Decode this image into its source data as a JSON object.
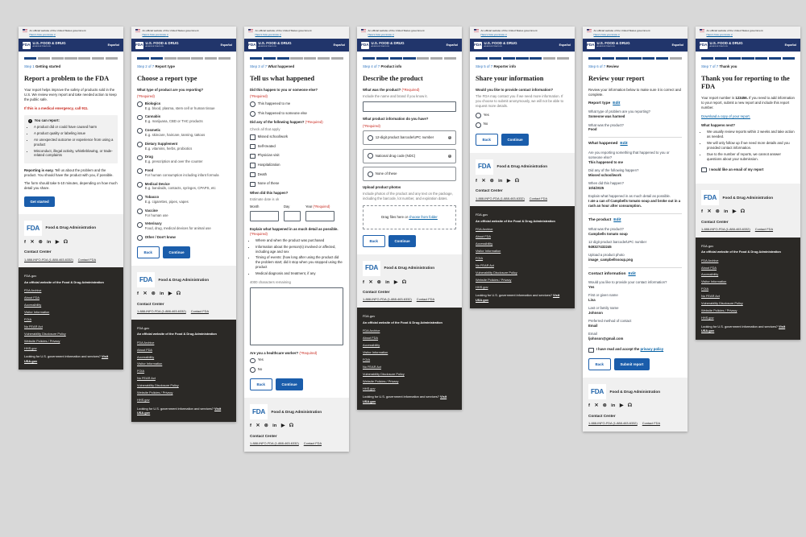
{
  "shared": {
    "banner": {
      "flag_icon": "us-flag-icon",
      "line1": "An official website of the United States government",
      "line2": "Here's how you know",
      "chevron": "∨"
    },
    "header": {
      "logo": "FDA",
      "title": "U.S. FOOD & DRUG",
      "subtitle": "ADMINISTRATION",
      "language": "Español"
    },
    "required": "(*Required)",
    "footer_gray": {
      "logo": "FDA",
      "org": "Food & Drug Administration",
      "social_icons": [
        "facebook",
        "x",
        "instagram",
        "linkedin",
        "youtube",
        "rss"
      ],
      "contact_center": "Contact Center",
      "phone": "1-888-INFO-FDA (1-888-463-6332)",
      "contact_link": "Contact FDA"
    },
    "footer_dark": {
      "site": "FDA.gov",
      "official": "An official website of the Food & Drug Administration",
      "links": [
        "FDA Archive",
        "About FDA",
        "Accessibility",
        "Visitor Information",
        "FOIA",
        "No FEAR Act",
        "Vulnerability Disclosure Policy",
        "Website Policies / Privacy",
        "HHS.gov"
      ],
      "usa_text": "Looking for U.S. government information and services? ",
      "usa_link": "Visit USA.gov"
    },
    "colors": {
      "navy": "#21356b",
      "progress_filled": "#1a4480",
      "progress_empty": "#acacac",
      "button_blue": "#1a5dab",
      "link_blue": "#005ea2",
      "required_red": "#c8281e",
      "dark_footer_bg": "#2b2926",
      "gray_footer_bg": "#f0f0f0"
    }
  },
  "panels": [
    {
      "step": 1,
      "step_label": "Step 1",
      "step_title": "Getting started",
      "dark_footer": true,
      "blocks": [
        {
          "type": "h1",
          "text": "Report a problem to the FDA"
        },
        {
          "type": "p",
          "runs": [
            {
              "t": "Your report helps improve the safety of products sold in the U.S. We review every report and take needed action to keep the public safe."
            }
          ]
        },
        {
          "type": "alert",
          "text": "If this is a medical emergency, call 911."
        },
        {
          "type": "infocard",
          "icon": "info-icon",
          "title": "You can report:",
          "bullets": [
            "A product did or could have caused harm",
            "A product quality or labeling issue",
            "An unexpected outcome or experience from using a product",
            "Misconduct, illegal activity, whistleblowing, or trade-related complaints"
          ]
        },
        {
          "type": "p",
          "runs": [
            {
              "t": "Reporting is easy.",
              "b": 1
            },
            {
              "t": " Tell us about the problem and the product. You should have the product with you, if possible."
            }
          ]
        },
        {
          "type": "p",
          "runs": [
            {
              "t": "The form should take 5-10 minutes, depending on how much detail you share."
            }
          ]
        },
        {
          "type": "buttons",
          "items": [
            {
              "label": "Get started",
              "style": "primary",
              "name": "get-started-button"
            }
          ]
        }
      ]
    },
    {
      "step": 2,
      "step_label": "Step 2 of 7",
      "step_title": "Report type",
      "dark_footer": true,
      "blocks": [
        {
          "type": "h1",
          "text": "Choose a report type"
        },
        {
          "type": "label",
          "runs": [
            {
              "t": "What type of product are you reporting?",
              "b": 1
            }
          ]
        },
        {
          "type": "label",
          "runs": [
            {
              "t": "(*Required)",
              "red": 1
            }
          ]
        },
        {
          "type": "radios",
          "options": [
            {
              "label": "Biologics",
              "b": 1,
              "desc": "E.g. blood, plasma, stem cell or human tissue"
            },
            {
              "label": "Cannabis",
              "b": 1,
              "desc": "E.g. marijuana, CBD or THC products"
            },
            {
              "label": "Cosmetic",
              "b": 1,
              "desc": "E.g. skincare, haircare, tanning, tattoos"
            },
            {
              "label": "Dietary Supplement",
              "b": 1,
              "desc": "E.g. vitamins, herbs, probiotics"
            },
            {
              "label": "Drug",
              "b": 1,
              "desc": "E.g. prescription and over the counter"
            },
            {
              "label": "Food",
              "b": 1,
              "desc": "For human consumption including infant formula"
            },
            {
              "label": "Medical Device",
              "b": 1,
              "desc": "E.g. bandaids, contacts, syringes, CPAPS, etc"
            },
            {
              "label": "Tobacco",
              "b": 1,
              "desc": "E.g. cigarettes, pipes, vapes"
            },
            {
              "label": "Vaccine",
              "b": 1,
              "desc": "For human use"
            },
            {
              "label": "Veterinary",
              "b": 1,
              "desc": "Food, drug, medical devices for animal use"
            },
            {
              "label": "Other / Don't know",
              "b": 1
            }
          ]
        },
        {
          "type": "buttons",
          "items": [
            {
              "label": "Back",
              "style": "outline",
              "name": "back-button"
            },
            {
              "label": "Continue",
              "style": "primary",
              "name": "continue-button"
            }
          ]
        }
      ]
    },
    {
      "step": 3,
      "step_label": "Step 3 of 7",
      "step_title": "What happened",
      "dark_footer": false,
      "blocks": [
        {
          "type": "h1",
          "text": "Tell us what happened"
        },
        {
          "type": "label",
          "runs": [
            {
              "t": "Did this happen to you or someone else?",
              "b": 1
            }
          ]
        },
        {
          "type": "label",
          "runs": [
            {
              "t": "(*Required)",
              "red": 1
            }
          ]
        },
        {
          "type": "radios",
          "options": [
            {
              "label": "This happened to me"
            },
            {
              "label": "This happened to someone else"
            }
          ]
        },
        {
          "type": "label",
          "runs": [
            {
              "t": "Did any of the following happen? ",
              "b": 1
            },
            {
              "t": "(*Required)",
              "red": 1
            }
          ]
        },
        {
          "type": "hint",
          "text": "Check all that apply"
        },
        {
          "type": "checks",
          "options": [
            {
              "label": "Missed school/work"
            },
            {
              "label": "Self-treated"
            },
            {
              "label": "Physician visit"
            },
            {
              "label": "Hospitalization"
            },
            {
              "label": "Death"
            },
            {
              "label": "None of these"
            }
          ]
        },
        {
          "type": "label",
          "runs": [
            {
              "t": "When did this happen?",
              "b": 1
            }
          ]
        },
        {
          "type": "hint",
          "text": "Estimate date is ok"
        },
        {
          "type": "dates",
          "fields": [
            {
              "label": "Month"
            },
            {
              "label": "Day"
            },
            {
              "label": "Year",
              "required": 1
            }
          ]
        },
        {
          "type": "label",
          "runs": [
            {
              "t": "Explain what happened in as much detail as possible. ",
              "b": 1
            },
            {
              "t": "(*Required)",
              "red": 1
            }
          ]
        },
        {
          "type": "bullets",
          "items": [
            "Where and when the product was purchased",
            "Information about the person(s) involved or affected, including age and sex",
            "Timing of events: (how long after using the product did the problem start; did it stop when you stopped using the product",
            "Medical diagnosis and treatment, if any"
          ]
        },
        {
          "type": "hint",
          "text": "4000 characters remaining"
        },
        {
          "type": "textarea"
        },
        {
          "type": "label",
          "runs": [
            {
              "t": "Are you a healthcare worker? ",
              "b": 1
            },
            {
              "t": "(*Required)",
              "red": 1
            }
          ]
        },
        {
          "type": "radios",
          "options": [
            {
              "label": "Yes"
            },
            {
              "label": "No"
            }
          ]
        },
        {
          "type": "buttons",
          "items": [
            {
              "label": "Back",
              "style": "outline",
              "name": "back-button"
            },
            {
              "label": "Continue",
              "style": "primary",
              "name": "continue-button"
            }
          ]
        }
      ]
    },
    {
      "step": 4,
      "step_label": "Step 4 of 7",
      "step_title": "Product info",
      "dark_footer": true,
      "blocks": [
        {
          "type": "h1",
          "text": "Describe the product"
        },
        {
          "type": "label",
          "runs": [
            {
              "t": "What was the product? ",
              "b": 1
            },
            {
              "t": "(*Required)",
              "red": 1
            }
          ]
        },
        {
          "type": "hint",
          "text": "Include the name and brand if you know it."
        },
        {
          "type": "input"
        },
        {
          "type": "label",
          "runs": [
            {
              "t": "What product information do you have?",
              "b": 1
            }
          ]
        },
        {
          "type": "label",
          "runs": [
            {
              "t": "(*Required)",
              "red": 1
            }
          ]
        },
        {
          "type": "cards",
          "options": [
            {
              "label": "12-digit product barcode/UPC number",
              "info": true
            },
            {
              "label": "National drug code (NDC)",
              "info": true
            },
            {
              "label": "None of these"
            }
          ]
        },
        {
          "type": "label",
          "runs": [
            {
              "t": "Upload product photos",
              "b": 1
            }
          ]
        },
        {
          "type": "p",
          "runs": [
            {
              "t": "Include photos of the product and any text on the package, including the barcode, lot number, and expiration dates.",
              "muted": 1
            }
          ]
        },
        {
          "type": "upload",
          "runs": [
            {
              "t": "Drag files here or "
            },
            {
              "t": "choose from folder",
              "link": 1,
              "name": "choose-from-folder-link"
            }
          ]
        },
        {
          "type": "buttons",
          "items": [
            {
              "label": "Back",
              "style": "outline",
              "name": "back-button"
            },
            {
              "label": "Continue",
              "style": "primary",
              "name": "continue-button"
            }
          ]
        }
      ]
    },
    {
      "step": 5,
      "step_label": "Step 5 of 7",
      "step_title": "Reporter info",
      "dark_footer": true,
      "blocks": [
        {
          "type": "h1",
          "text": "Share your information"
        },
        {
          "type": "label",
          "runs": [
            {
              "t": "Would you like to provide contact information?",
              "b": 1
            }
          ]
        },
        {
          "type": "p",
          "runs": [
            {
              "t": "The FDA may contact you if we need more information. If you choose to submit anonymously, we will not be able to request more details.",
              "muted": 1
            }
          ]
        },
        {
          "type": "radios",
          "options": [
            {
              "label": "Yes"
            },
            {
              "label": "No"
            }
          ]
        },
        {
          "type": "buttons",
          "items": [
            {
              "label": "Back",
              "style": "outline",
              "name": "back-button"
            },
            {
              "label": "Continue",
              "style": "primary",
              "name": "continue-button"
            }
          ]
        }
      ]
    },
    {
      "step": 6,
      "step_label": "Step 6 of 7",
      "step_title": "Review",
      "dark_footer": false,
      "blocks": [
        {
          "type": "h1",
          "text": "Review your report"
        },
        {
          "type": "p",
          "runs": [
            {
              "t": "Review your information below to make sure it is correct and complete."
            }
          ]
        },
        {
          "type": "section",
          "title": "Report type",
          "edit": "Edit"
        },
        {
          "type": "qa",
          "q": "What type of problem are you reporting?",
          "a": "Someone was harmed"
        },
        {
          "type": "qa",
          "q": "What was the product?",
          "a": "Food"
        },
        {
          "type": "divider"
        },
        {
          "type": "section",
          "title": "What happened",
          "edit": "Edit"
        },
        {
          "type": "qa",
          "q": "Are you reporting something that happened to you or someone else?",
          "a": "This happened to me"
        },
        {
          "type": "qa",
          "q": "Did any of the following happen?",
          "a": "Missed school/work"
        },
        {
          "type": "qa",
          "q": "When did this happen?",
          "a": "10/4/2025"
        },
        {
          "type": "qa",
          "q": "Explain what happened in as much detail as possible.",
          "a": "I ate a can of Campbells tomato soup and broke out in a rash an hour after consumption."
        },
        {
          "type": "divider"
        },
        {
          "type": "section",
          "title": "The product",
          "edit": "Edit"
        },
        {
          "type": "qa",
          "q": "What was the product?",
          "a": "Campbells tomato soup"
        },
        {
          "type": "qa",
          "q": "12 digit product barcode/UPC number",
          "a": "949327432245"
        },
        {
          "type": "qa",
          "q": "Upload a product photo",
          "a": "image_campbellssoup.png"
        },
        {
          "type": "divider"
        },
        {
          "type": "section",
          "title": "Contact information",
          "edit": "Edit"
        },
        {
          "type": "qa",
          "q": "Would you like to provide your contact information?",
          "a": "Yes"
        },
        {
          "type": "qa",
          "q": "First or given name",
          "a": "Lisa"
        },
        {
          "type": "qa",
          "q": "Last or family name",
          "a": "Johnson"
        },
        {
          "type": "qa",
          "q": "Preferred method of contact",
          "a": "Email"
        },
        {
          "type": "qa",
          "q": "Email",
          "a": "ljohnson@gmail.com"
        },
        {
          "type": "checkline",
          "runs": [
            {
              "t": "I have read and accept the ",
              "b": 1
            },
            {
              "t": "privacy policy",
              "b": 1,
              "link": 1,
              "name": "privacy-policy-link"
            }
          ]
        },
        {
          "type": "buttons",
          "items": [
            {
              "label": "Back",
              "style": "outline",
              "name": "back-button"
            },
            {
              "label": "Submit report",
              "style": "primary",
              "name": "submit-report-button"
            }
          ]
        }
      ]
    },
    {
      "step": 7,
      "step_label": "Step 7 of 7",
      "step_title": "Thank you",
      "dark_footer": true,
      "blocks": [
        {
          "type": "h1",
          "text": "Thank you for reporting to the FDA"
        },
        {
          "type": "p",
          "runs": [
            {
              "t": "Your report number is "
            },
            {
              "t": "123456.",
              "b": 1
            },
            {
              "t": " If you need to add information to your report, submit a new report and include this report number."
            }
          ]
        },
        {
          "type": "link",
          "text": "Download a copy of your report.",
          "name": "download-report-link"
        },
        {
          "type": "label",
          "runs": [
            {
              "t": "What happens next?",
              "b": 1
            }
          ]
        },
        {
          "type": "bullets",
          "items": [
            "We usually review reports within 2 weeks and take action as needed.",
            "We will only follow up if we need more details and you provided contact information.",
            "Due to the number of reports, we cannot answer questions about your submission."
          ]
        },
        {
          "type": "checkline",
          "runs": [
            {
              "t": "I would like an email of my report",
              "b": 1
            }
          ]
        }
      ]
    }
  ]
}
